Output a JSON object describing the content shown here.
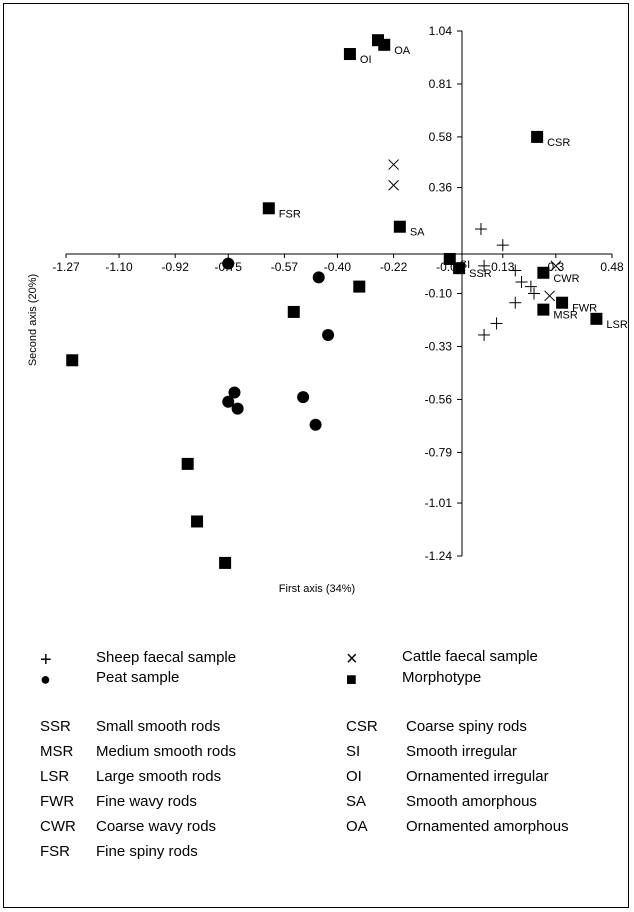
{
  "chart_data": {
    "type": "scatter",
    "title": "",
    "xlabel": "First axis (34%)",
    "ylabel": "Second axis (20%)",
    "xlim": [
      -1.27,
      0.48
    ],
    "ylim": [
      -1.24,
      1.04
    ],
    "x_ticks": [
      -1.27,
      -1.1,
      -0.92,
      -0.75,
      -0.57,
      -0.4,
      -0.22,
      -0.04,
      0.13,
      0.3,
      0.48
    ],
    "x_tick_labels": [
      "-1.27",
      "-1.10",
      "-0.92",
      "-0.75",
      "-0.57",
      "-0.40",
      "-0.22",
      "-0.04",
      "0.13",
      "0.3",
      "0.48"
    ],
    "y_ticks": [
      1.04,
      0.81,
      0.58,
      0.36,
      -0.1,
      -0.33,
      -0.56,
      -0.79,
      -1.01,
      -1.24
    ],
    "y_tick_labels": [
      "1.04",
      "0.81",
      "0.58",
      "0.36",
      "-0.10",
      "-0.33",
      "-0.56",
      "-0.79",
      "-1.01",
      "-1.24"
    ],
    "grid": false,
    "series": [
      {
        "name": "Sheep faecal sample",
        "marker": "plus",
        "points": [
          {
            "x": 0.06,
            "y": 0.18
          },
          {
            "x": 0.13,
            "y": 0.11
          },
          {
            "x": 0.07,
            "y": 0.02
          },
          {
            "x": 0.17,
            "y": 0.0
          },
          {
            "x": 0.19,
            "y": -0.05
          },
          {
            "x": 0.22,
            "y": -0.07
          },
          {
            "x": 0.17,
            "y": -0.14
          },
          {
            "x": 0.11,
            "y": -0.23
          },
          {
            "x": 0.07,
            "y": -0.28
          },
          {
            "x": 0.23,
            "y": -0.1
          }
        ]
      },
      {
        "name": "Cattle faecal sample",
        "marker": "cross",
        "points": [
          {
            "x": -0.22,
            "y": 0.46
          },
          {
            "x": -0.22,
            "y": 0.37
          },
          {
            "x": 0.3,
            "y": 0.02
          },
          {
            "x": 0.28,
            "y": -0.11
          }
        ]
      },
      {
        "name": "Peat sample",
        "marker": "circle",
        "points": [
          {
            "x": -0.75,
            "y": 0.03
          },
          {
            "x": -0.46,
            "y": -0.03
          },
          {
            "x": -0.43,
            "y": -0.28
          },
          {
            "x": -0.73,
            "y": -0.53
          },
          {
            "x": -0.75,
            "y": -0.57
          },
          {
            "x": -0.72,
            "y": -0.6
          },
          {
            "x": -0.51,
            "y": -0.55
          },
          {
            "x": -0.47,
            "y": -0.67
          }
        ]
      },
      {
        "name": "Morphotype",
        "marker": "square",
        "points": [
          {
            "x": -0.27,
            "y": 1.0,
            "label": ""
          },
          {
            "x": -0.25,
            "y": 0.98,
            "label": "OA"
          },
          {
            "x": -0.36,
            "y": 0.94,
            "label": "OI"
          },
          {
            "x": 0.24,
            "y": 0.58,
            "label": "CSR"
          },
          {
            "x": -0.62,
            "y": 0.27,
            "label": "FSR"
          },
          {
            "x": -0.2,
            "y": 0.19,
            "label": "SA"
          },
          {
            "x": -0.04,
            "y": 0.05,
            "label": "SI"
          },
          {
            "x": -0.01,
            "y": 0.01,
            "label": "SSR"
          },
          {
            "x": 0.26,
            "y": -0.01,
            "label": "CWR"
          },
          {
            "x": -0.33,
            "y": -0.07,
            "label": ""
          },
          {
            "x": -0.54,
            "y": -0.18,
            "label": ""
          },
          {
            "x": 0.26,
            "y": -0.17,
            "label": "MSR"
          },
          {
            "x": 0.32,
            "y": -0.14,
            "label": "FWR"
          },
          {
            "x": 0.43,
            "y": -0.21,
            "label": "LSR"
          },
          {
            "x": -1.25,
            "y": -0.39,
            "label": ""
          },
          {
            "x": -0.88,
            "y": -0.84,
            "label": ""
          },
          {
            "x": -0.85,
            "y": -1.09,
            "label": ""
          },
          {
            "x": -0.76,
            "y": -1.27,
            "label": ""
          }
        ]
      }
    ]
  },
  "legend": {
    "markers": [
      {
        "symbol": "+",
        "text": "Sheep faecal sample"
      },
      {
        "symbol": "×",
        "text": "Cattle faecal sample"
      },
      {
        "symbol": "●",
        "text": "Peat sample"
      },
      {
        "symbol": "■",
        "text": "Morphotype"
      }
    ],
    "abbreviations": [
      {
        "code": "SSR",
        "text": "Small smooth rods"
      },
      {
        "code": "MSR",
        "text": "Medium smooth rods"
      },
      {
        "code": "LSR",
        "text": "Large smooth rods"
      },
      {
        "code": "FWR",
        "text": "Fine wavy rods"
      },
      {
        "code": "CWR",
        "text": "Coarse wavy rods"
      },
      {
        "code": "FSR",
        "text": "Fine spiny rods"
      },
      {
        "code": "CSR",
        "text": "Coarse spiny rods"
      },
      {
        "code": "SI",
        "text": "Smooth irregular"
      },
      {
        "code": "OI",
        "text": "Ornamented irregular"
      },
      {
        "code": "SA",
        "text": "Smooth amorphous"
      },
      {
        "code": "OA",
        "text": "Ornamented  amorphous"
      }
    ]
  }
}
